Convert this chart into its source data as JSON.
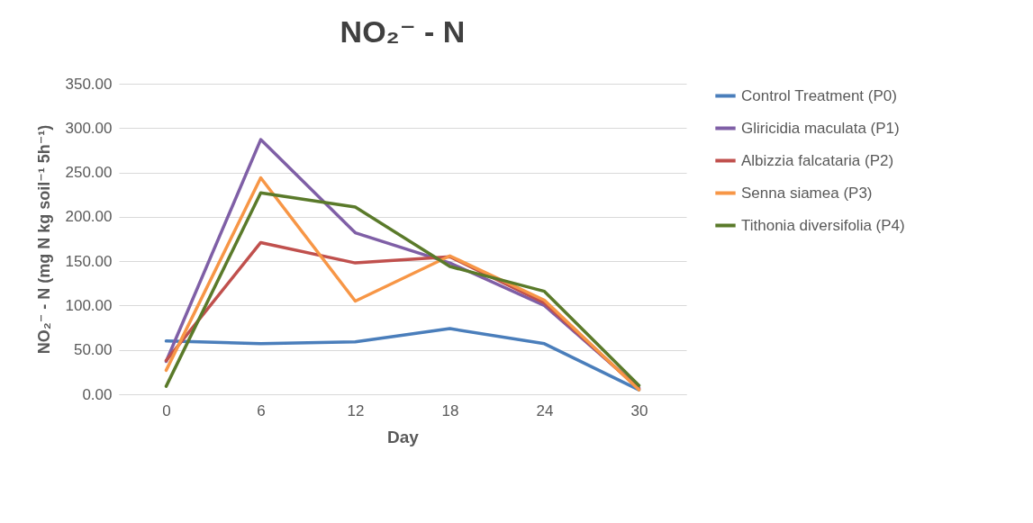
{
  "chart_data": {
    "type": "line",
    "title": "NO₂⁻ - N",
    "xlabel": "Day",
    "ylabel": "NO₂⁻ - N (mg N kg soil⁻¹ 5h⁻¹)",
    "categories": [
      "0",
      "6",
      "12",
      "18",
      "24",
      "30"
    ],
    "series": [
      {
        "name": "Control Treatment (P0)",
        "color": "#4a7ebb",
        "values": [
          60,
          57,
          59,
          74,
          57,
          5
        ]
      },
      {
        "name": "Gliricidia maculata (P1)",
        "color": "#7f5fa6",
        "values": [
          37,
          287,
          182,
          148,
          100,
          7
        ]
      },
      {
        "name": "Albizzia falcataria (P2)",
        "color": "#c0504d",
        "values": [
          38,
          171,
          148,
          155,
          103,
          6
        ]
      },
      {
        "name": "Senna siamea (P3)",
        "color": "#f79646",
        "values": [
          27,
          244,
          105,
          156,
          106,
          5
        ]
      },
      {
        "name": "Tithonia diversifolia (P4)",
        "color": "#5a7a2a",
        "values": [
          9,
          227,
          211,
          144,
          116,
          10
        ]
      }
    ],
    "ylim": [
      0,
      350
    ],
    "yticks": [
      {
        "value": 0,
        "label": "0.00"
      },
      {
        "value": 50,
        "label": "50.00"
      },
      {
        "value": 100,
        "label": "100.00"
      },
      {
        "value": 150,
        "label": "150.00"
      },
      {
        "value": 200,
        "label": "200.00"
      },
      {
        "value": 250,
        "label": "250.00"
      },
      {
        "value": 300,
        "label": "300.00"
      },
      {
        "value": 350,
        "label": "350.00"
      }
    ],
    "grid": "y",
    "legend": "right",
    "marker": "none",
    "line_style": "solid"
  }
}
